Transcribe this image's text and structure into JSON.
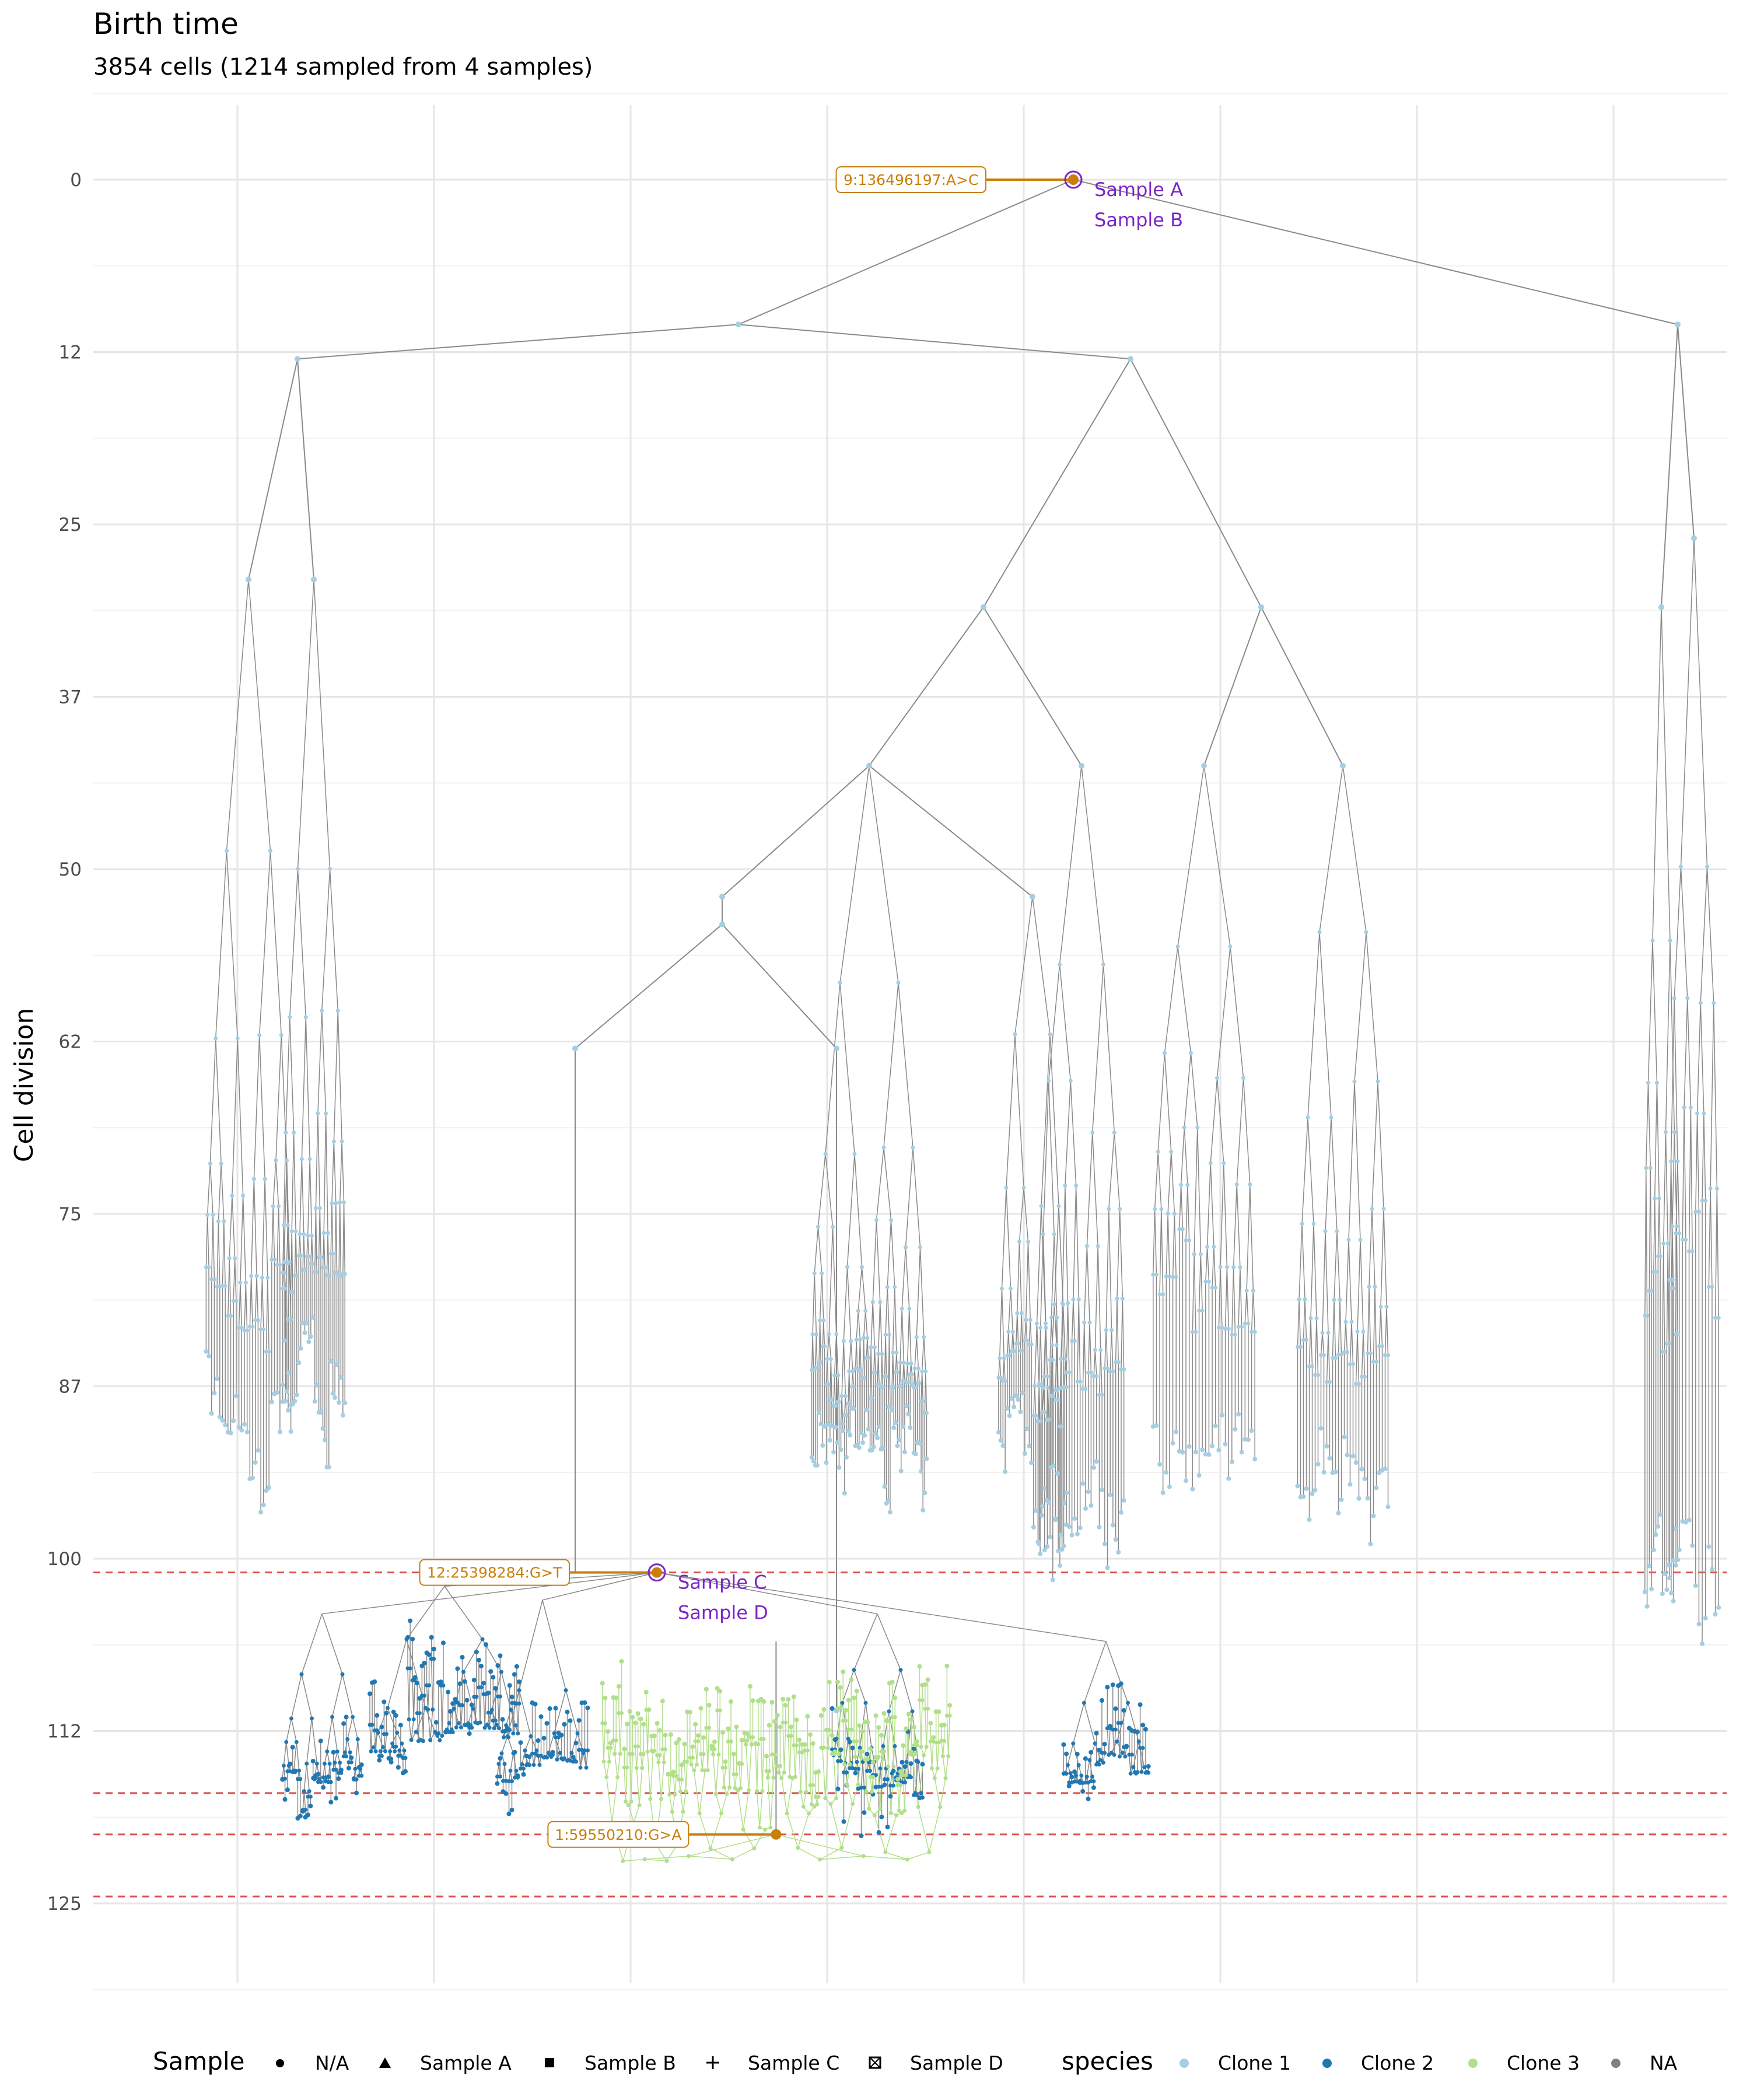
{
  "chart_data": {
    "type": "tree",
    "title": "Birth time",
    "subtitle": "3854 cells (1214 sampled from 4 samples)",
    "ylabel": "Cell division",
    "ylim": [
      0,
      125
    ],
    "y_reversed": true,
    "y_ticks": [
      "0",
      "12",
      "25",
      "37",
      "50",
      "62",
      "75",
      "87",
      "100",
      "112",
      "125"
    ],
    "y_tick_values": [
      0,
      12.5,
      25,
      37.5,
      50,
      62.5,
      75,
      87.5,
      100,
      112.5,
      125
    ],
    "grid": true,
    "colors": {
      "branch": "#8a8a8a",
      "clone1": "#a6cee3",
      "clone2": "#1f78b4",
      "clone3": "#b2df8a",
      "na": "#808080",
      "mutation": "#c87f0a",
      "sample_label": "#7b25c9",
      "sample_line": "#d9534f"
    },
    "sample_times": [
      101,
      117,
      120,
      124.5
    ],
    "mutations": [
      {
        "label": "9:136496197:A>C",
        "x": 0.6,
        "y": 0,
        "samples": [
          "Sample A",
          "Sample B"
        ]
      },
      {
        "label": "12:25398284:G>T",
        "x": 0.345,
        "y": 101,
        "samples": [
          "Sample C",
          "Sample D"
        ]
      },
      {
        "label": "1:59550210:G>A",
        "x": 0.418,
        "y": 120,
        "samples": []
      }
    ],
    "tree": {
      "root": {
        "x": 0.6,
        "y": 0
      },
      "nodes": [
        {
          "id": "a",
          "x": 0.395,
          "y": 10.5,
          "parent": "root"
        },
        {
          "id": "b",
          "x": 0.97,
          "y": 10.5,
          "parent": "root"
        },
        {
          "id": "c",
          "x": 0.125,
          "y": 13,
          "parent": "a"
        },
        {
          "id": "d",
          "x": 0.635,
          "y": 13,
          "parent": "a"
        },
        {
          "id": "e",
          "x": 0.095,
          "y": 29,
          "parent": "c"
        },
        {
          "id": "f",
          "x": 0.135,
          "y": 29,
          "parent": "c"
        },
        {
          "id": "g",
          "x": 0.545,
          "y": 31,
          "parent": "d"
        },
        {
          "id": "h",
          "x": 0.715,
          "y": 31,
          "parent": "d"
        },
        {
          "id": "i",
          "x": 0.98,
          "y": 26,
          "parent": "b"
        },
        {
          "id": "j",
          "x": 0.96,
          "y": 31,
          "parent": "b"
        },
        {
          "id": "k",
          "x": 0.475,
          "y": 42.5,
          "parent": "g"
        },
        {
          "id": "l",
          "x": 0.605,
          "y": 42.5,
          "parent": "g"
        },
        {
          "id": "m",
          "x": 0.68,
          "y": 42.5,
          "parent": "h"
        },
        {
          "id": "n",
          "x": 0.765,
          "y": 42.5,
          "parent": "h"
        },
        {
          "id": "o",
          "x": 0.385,
          "y": 52,
          "parent": "k"
        },
        {
          "id": "p",
          "x": 0.575,
          "y": 52,
          "parent": "k"
        },
        {
          "id": "q",
          "x": 0.385,
          "y": 54,
          "parent": "o"
        },
        {
          "id": "r",
          "x": 0.295,
          "y": 63,
          "parent": "q"
        },
        {
          "id": "s",
          "x": 0.455,
          "y": 63,
          "parent": "q"
        }
      ]
    },
    "legend": {
      "sample": {
        "title": "Sample",
        "items": [
          "N/A",
          "Sample A",
          "Sample B",
          "Sample C",
          "Sample D"
        ]
      },
      "species": {
        "title": "species",
        "items": [
          "Clone 1",
          "Clone 2",
          "Clone 3",
          "NA"
        ]
      }
    }
  }
}
